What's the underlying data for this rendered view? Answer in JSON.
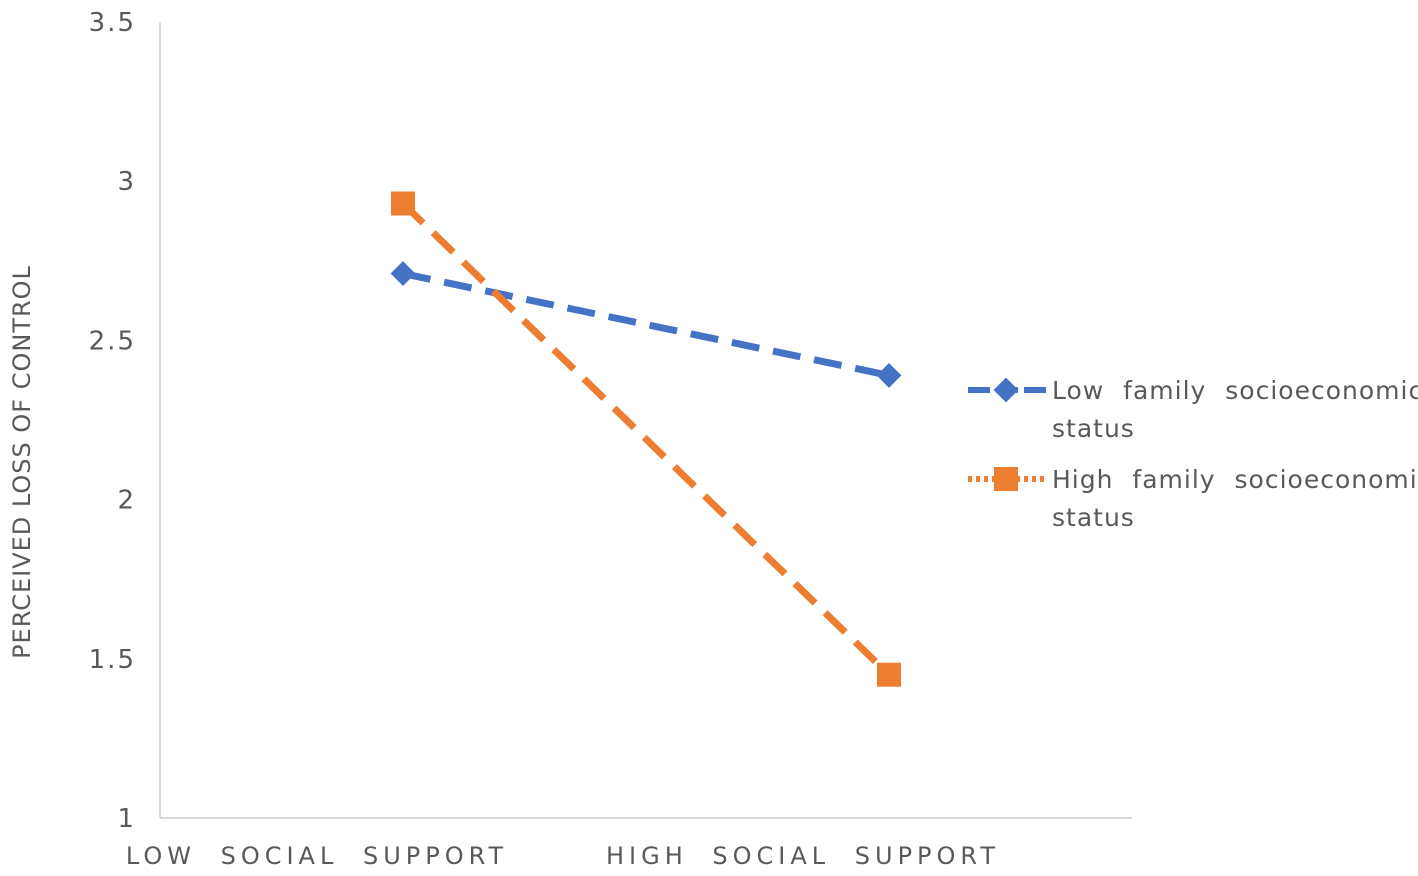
{
  "chart_data": {
    "type": "line",
    "title": "",
    "xlabel": "",
    "ylabel": "PERCEIVED LOSS OF CONTROL",
    "categories": [
      "LOW SOCIAL SUPPORT",
      "HIGH SOCIAL SUPPORT"
    ],
    "ylim": [
      1,
      3.5
    ],
    "yticks": [
      "1",
      "1.5",
      "2",
      "2.5",
      "3",
      "3.5"
    ],
    "grid": false,
    "legend_position": "right",
    "series": [
      {
        "name": "Low family socioeconomic status",
        "name_lines": [
          "Low family socioeconomic",
          "status"
        ],
        "values": [
          2.71,
          2.39
        ],
        "color": "#4472C4",
        "marker": "diamond",
        "line_style": "dashed"
      },
      {
        "name": "High family socioeconomic status",
        "name_lines": [
          "High family socioeconomic",
          "status"
        ],
        "values": [
          2.93,
          1.45
        ],
        "color": "#ED7D31",
        "marker": "square",
        "line_style": "dashed"
      }
    ]
  }
}
